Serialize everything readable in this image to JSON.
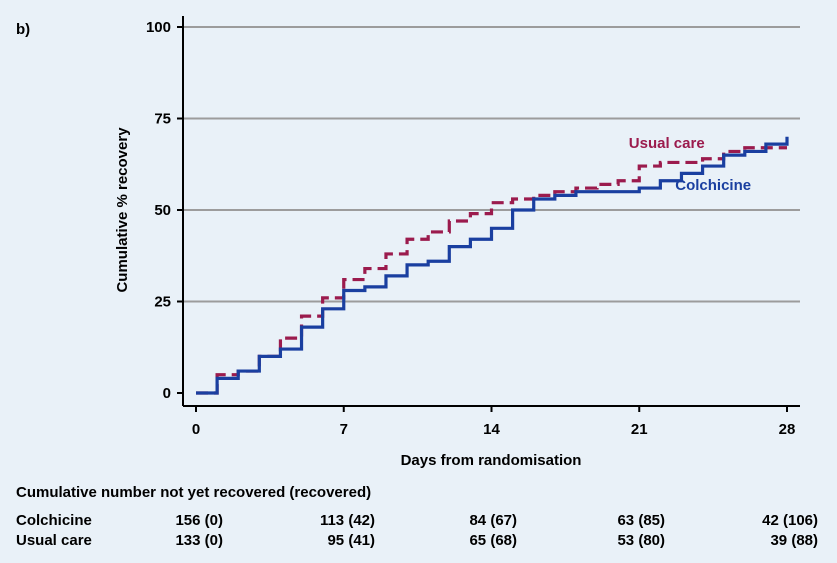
{
  "panel_label": "b)",
  "colors": {
    "colchicine": "#1a3fa0",
    "usual_care": "#9b1b4d",
    "grid": "#9c9c9c",
    "background": "#e9f1f8"
  },
  "chart_data": {
    "type": "line",
    "step": true,
    "xlabel": "Days from randomisation",
    "ylabel": "Cumulative % recovery",
    "xlim": [
      0,
      28
    ],
    "ylim": [
      0,
      100
    ],
    "xticks": [
      0,
      7,
      14,
      21,
      28
    ],
    "yticks": [
      0,
      25,
      50,
      75,
      100
    ],
    "grid": "horizontal",
    "series": [
      {
        "name": "Usual care",
        "style": "dashed",
        "color": "#9b1b4d",
        "x": [
          0,
          1,
          2,
          3,
          4,
          5,
          6,
          7,
          8,
          9,
          10,
          11,
          12,
          13,
          14,
          15,
          16,
          17,
          18,
          19,
          20,
          21,
          22,
          23,
          24,
          25,
          26,
          27,
          28
        ],
        "y": [
          0,
          5,
          6,
          10,
          15,
          21,
          26,
          31,
          34,
          38,
          42,
          44,
          47,
          49,
          52,
          53,
          54,
          55,
          56,
          57,
          58,
          62,
          63,
          63,
          64,
          66,
          67,
          67,
          67
        ]
      },
      {
        "name": "Colchicine",
        "style": "solid",
        "color": "#1a3fa0",
        "x": [
          0,
          1,
          2,
          3,
          4,
          5,
          6,
          7,
          8,
          9,
          10,
          11,
          12,
          13,
          14,
          15,
          16,
          17,
          18,
          19,
          20,
          21,
          22,
          23,
          24,
          25,
          26,
          27,
          28
        ],
        "y": [
          0,
          4,
          6,
          10,
          12,
          18,
          23,
          28,
          29,
          32,
          35,
          36,
          40,
          42,
          45,
          50,
          53,
          54,
          55,
          55,
          55,
          56,
          58,
          60,
          62,
          65,
          66,
          68,
          70
        ]
      }
    ],
    "annotations": [
      {
        "text": "Usual care",
        "series": "Usual care",
        "x": 24.1,
        "y": 67
      },
      {
        "text": "Colchicine",
        "series": "Colchicine",
        "x": 26.3,
        "y": 55.5
      }
    ]
  },
  "risk_table": {
    "title": "Cumulative number not yet recovered (recovered)",
    "rows": [
      {
        "name": "Colchicine",
        "values": [
          "156 (0)",
          "113 (42)",
          "84 (67)",
          "63 (85)",
          "42 (106)"
        ]
      },
      {
        "name": "Usual care",
        "values": [
          "133 (0)",
          "95 (41)",
          "65 (68)",
          "53 (80)",
          "39 (88)"
        ]
      }
    ]
  }
}
